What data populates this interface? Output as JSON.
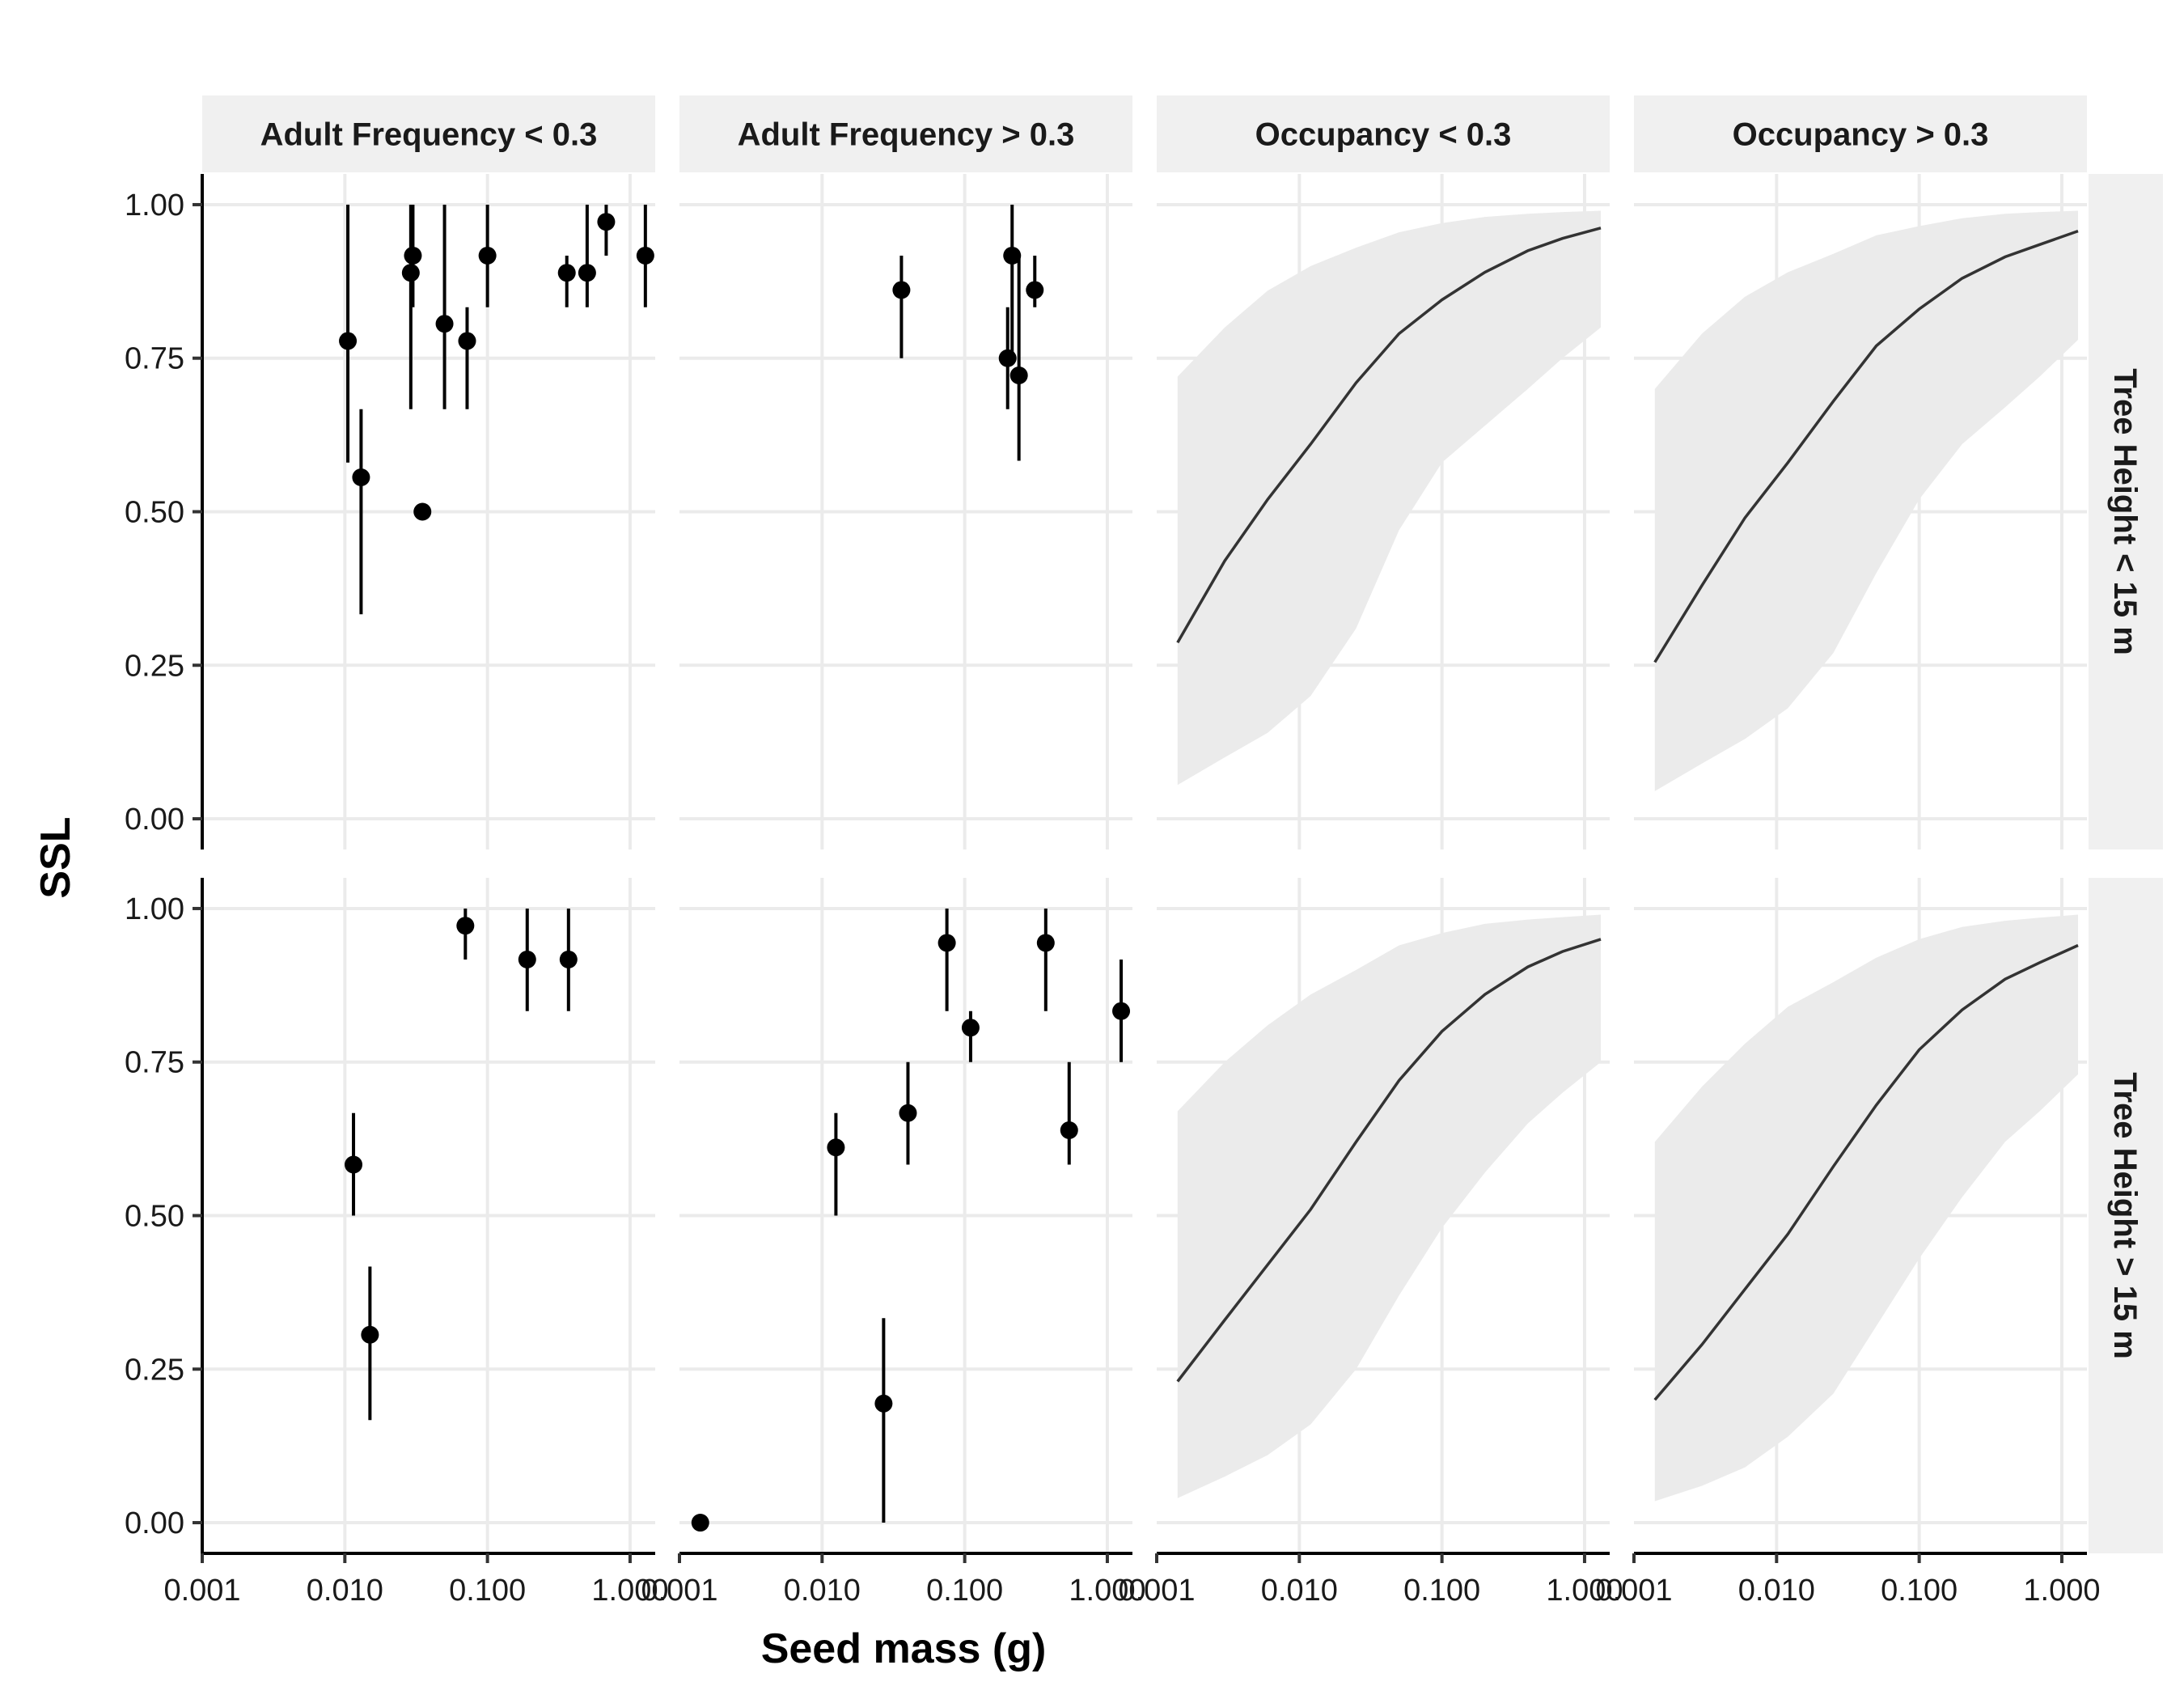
{
  "chart_data": {
    "type": "scatter",
    "xlabel": "Seed mass (g)",
    "ylabel": "SSL",
    "x_scale": "log10",
    "xlim": [
      0.001,
      1.5
    ],
    "ylim": [
      -0.05,
      1.05
    ],
    "x_ticks": [
      0.001,
      0.01,
      0.1,
      1
    ],
    "x_tick_labels": [
      "0.001",
      "0.010",
      "0.100",
      "1.000"
    ],
    "y_ticks": [
      0,
      0.25,
      0.5,
      0.75,
      1
    ],
    "y_tick_labels": [
      "0.00",
      "0.25",
      "0.50",
      "0.75",
      "1.00"
    ],
    "grid": true,
    "col_strips": [
      "Adult Frequency < 0.3",
      "Adult Frequency > 0.3",
      "Occupancy < 0.3",
      "Occupancy > 0.3"
    ],
    "row_strips": [
      "Tree Height < 15 m",
      "Tree Height > 15 m"
    ],
    "point_color": "#000000",
    "line_color": "#333333",
    "ribbon_color": "#ebebeb",
    "strip_color": "#f0f0f0",
    "panels": [
      {
        "row": 0,
        "col": 0,
        "kind": "points",
        "points": [
          {
            "x": 0.0105,
            "y": 0.778,
            "lo": 0.58,
            "hi": 1.0
          },
          {
            "x": 0.013,
            "y": 0.556,
            "lo": 0.333,
            "hi": 0.667
          },
          {
            "x": 0.029,
            "y": 0.889,
            "lo": 0.667,
            "hi": 1.0
          },
          {
            "x": 0.03,
            "y": 0.917,
            "lo": 0.833,
            "hi": 1.0
          },
          {
            "x": 0.035,
            "y": 0.5,
            "lo": 0.5,
            "hi": 0.5
          },
          {
            "x": 0.05,
            "y": 0.806,
            "lo": 0.667,
            "hi": 1.0
          },
          {
            "x": 0.072,
            "y": 0.778,
            "lo": 0.667,
            "hi": 0.833
          },
          {
            "x": 0.1,
            "y": 0.917,
            "lo": 0.833,
            "hi": 1.0
          },
          {
            "x": 0.36,
            "y": 0.889,
            "lo": 0.833,
            "hi": 0.917
          },
          {
            "x": 0.5,
            "y": 0.889,
            "lo": 0.833,
            "hi": 1.0
          },
          {
            "x": 0.68,
            "y": 0.972,
            "lo": 0.917,
            "hi": 1.0
          },
          {
            "x": 1.28,
            "y": 0.917,
            "lo": 0.833,
            "hi": 1.0
          }
        ]
      },
      {
        "row": 0,
        "col": 1,
        "kind": "points",
        "points": [
          {
            "x": 0.036,
            "y": 0.861,
            "lo": 0.75,
            "hi": 0.917
          },
          {
            "x": 0.2,
            "y": 0.75,
            "lo": 0.667,
            "hi": 0.833
          },
          {
            "x": 0.215,
            "y": 0.917,
            "lo": 0.75,
            "hi": 1.0
          },
          {
            "x": 0.24,
            "y": 0.722,
            "lo": 0.583,
            "hi": 0.917
          },
          {
            "x": 0.31,
            "y": 0.861,
            "lo": 0.833,
            "hi": 0.917
          }
        ]
      },
      {
        "row": 0,
        "col": 2,
        "kind": "fit",
        "x": [
          0.0014,
          0.003,
          0.006,
          0.012,
          0.025,
          0.05,
          0.1,
          0.2,
          0.4,
          0.7,
          1.3
        ],
        "y": [
          0.287,
          0.42,
          0.52,
          0.61,
          0.71,
          0.79,
          0.845,
          0.89,
          0.925,
          0.945,
          0.962
        ],
        "lo": [
          0.055,
          0.1,
          0.14,
          0.2,
          0.31,
          0.47,
          0.58,
          0.64,
          0.7,
          0.75,
          0.8
        ],
        "hi": [
          0.72,
          0.8,
          0.86,
          0.9,
          0.93,
          0.955,
          0.97,
          0.98,
          0.985,
          0.988,
          0.99
        ]
      },
      {
        "row": 0,
        "col": 3,
        "kind": "fit",
        "x": [
          0.0014,
          0.003,
          0.006,
          0.012,
          0.025,
          0.05,
          0.1,
          0.2,
          0.4,
          0.7,
          1.3
        ],
        "y": [
          0.255,
          0.38,
          0.49,
          0.58,
          0.68,
          0.77,
          0.83,
          0.88,
          0.915,
          0.935,
          0.957
        ],
        "lo": [
          0.045,
          0.09,
          0.13,
          0.18,
          0.27,
          0.4,
          0.52,
          0.61,
          0.67,
          0.72,
          0.78
        ],
        "hi": [
          0.7,
          0.79,
          0.85,
          0.89,
          0.92,
          0.95,
          0.965,
          0.978,
          0.985,
          0.988,
          0.99
        ]
      },
      {
        "row": 1,
        "col": 0,
        "kind": "points",
        "points": [
          {
            "x": 0.0115,
            "y": 0.583,
            "lo": 0.5,
            "hi": 0.667
          },
          {
            "x": 0.015,
            "y": 0.306,
            "lo": 0.167,
            "hi": 0.417
          },
          {
            "x": 0.07,
            "y": 0.972,
            "lo": 0.917,
            "hi": 1.0
          },
          {
            "x": 0.19,
            "y": 0.917,
            "lo": 0.833,
            "hi": 1.0
          },
          {
            "x": 0.37,
            "y": 0.917,
            "lo": 0.833,
            "hi": 1.0
          }
        ]
      },
      {
        "row": 1,
        "col": 1,
        "kind": "points",
        "points": [
          {
            "x": 0.0014,
            "y": 0.0,
            "lo": 0.0,
            "hi": 0.0
          },
          {
            "x": 0.0125,
            "y": 0.611,
            "lo": 0.5,
            "hi": 0.667
          },
          {
            "x": 0.027,
            "y": 0.194,
            "lo": 0.0,
            "hi": 0.333
          },
          {
            "x": 0.04,
            "y": 0.667,
            "lo": 0.583,
            "hi": 0.75
          },
          {
            "x": 0.075,
            "y": 0.944,
            "lo": 0.833,
            "hi": 1.0
          },
          {
            "x": 0.11,
            "y": 0.806,
            "lo": 0.75,
            "hi": 0.833
          },
          {
            "x": 0.37,
            "y": 0.944,
            "lo": 0.833,
            "hi": 1.0
          },
          {
            "x": 0.54,
            "y": 0.639,
            "lo": 0.583,
            "hi": 0.75
          },
          {
            "x": 1.25,
            "y": 0.833,
            "lo": 0.75,
            "hi": 0.917
          }
        ]
      },
      {
        "row": 1,
        "col": 2,
        "kind": "fit",
        "x": [
          0.0014,
          0.003,
          0.006,
          0.012,
          0.025,
          0.05,
          0.1,
          0.2,
          0.4,
          0.7,
          1.3
        ],
        "y": [
          0.23,
          0.33,
          0.42,
          0.51,
          0.62,
          0.72,
          0.8,
          0.86,
          0.905,
          0.93,
          0.95
        ],
        "lo": [
          0.04,
          0.075,
          0.11,
          0.16,
          0.25,
          0.37,
          0.48,
          0.57,
          0.65,
          0.7,
          0.75
        ],
        "hi": [
          0.67,
          0.75,
          0.81,
          0.86,
          0.9,
          0.94,
          0.96,
          0.975,
          0.982,
          0.986,
          0.99
        ]
      },
      {
        "row": 1,
        "col": 3,
        "kind": "fit",
        "x": [
          0.0014,
          0.003,
          0.006,
          0.012,
          0.025,
          0.05,
          0.1,
          0.2,
          0.4,
          0.7,
          1.3
        ],
        "y": [
          0.2,
          0.29,
          0.38,
          0.47,
          0.58,
          0.68,
          0.77,
          0.835,
          0.885,
          0.912,
          0.94
        ],
        "lo": [
          0.035,
          0.06,
          0.09,
          0.14,
          0.21,
          0.32,
          0.43,
          0.53,
          0.62,
          0.67,
          0.73
        ],
        "hi": [
          0.62,
          0.71,
          0.78,
          0.84,
          0.88,
          0.92,
          0.95,
          0.97,
          0.98,
          0.985,
          0.99
        ]
      }
    ]
  }
}
